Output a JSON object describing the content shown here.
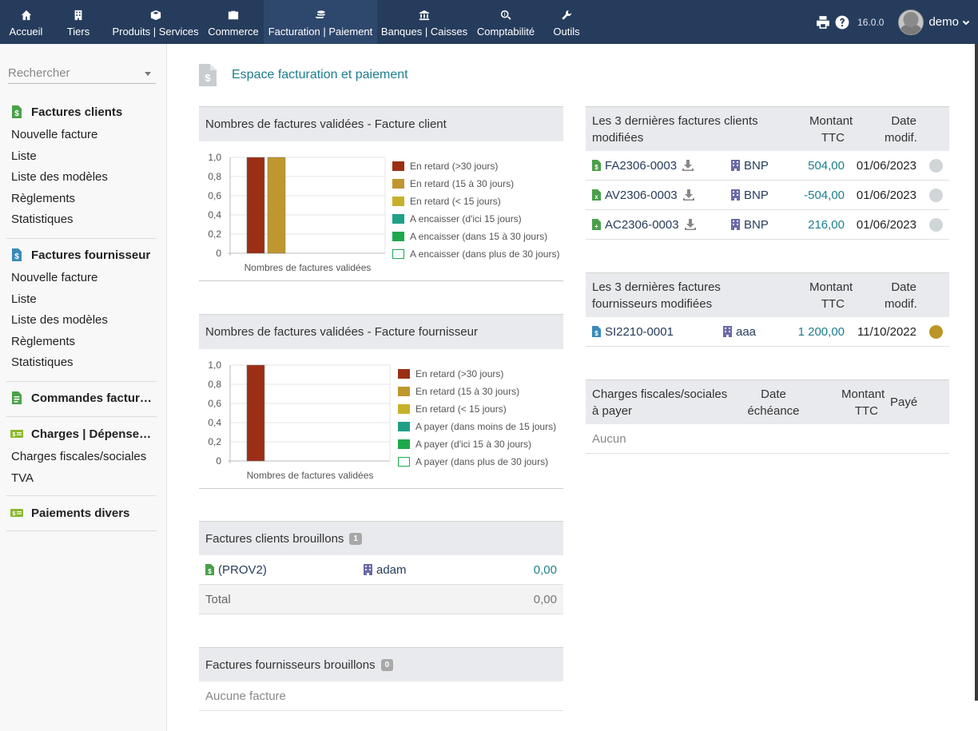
{
  "topmenu": [
    {
      "label": "Accueil",
      "icon": "home-icon"
    },
    {
      "label": "Tiers",
      "icon": "building-icon"
    },
    {
      "label": "Produits | Services",
      "icon": "cube-icon"
    },
    {
      "label": "Commerce",
      "icon": "briefcase-icon"
    },
    {
      "label": "Facturation | Paiement",
      "icon": "coins-icon"
    },
    {
      "label": "Banques | Caisses",
      "icon": "bank-icon"
    },
    {
      "label": "Comptabilité",
      "icon": "search-dollar-icon"
    },
    {
      "label": "Outils",
      "icon": "wrench-icon"
    }
  ],
  "topright": {
    "version": "16.0.0",
    "user": "demo"
  },
  "sidebar": {
    "search_placeholder": "Rechercher",
    "sections": [
      {
        "title": "Factures clients",
        "items": [
          "Nouvelle facture",
          "Liste",
          "Liste des modèles",
          "Règlements",
          "Statistiques"
        ]
      },
      {
        "title": "Factures fournisseur",
        "items": [
          "Nouvelle facture",
          "Liste",
          "Liste des modèles",
          "Règlements",
          "Statistiques"
        ]
      },
      {
        "title": "Commandes facturables",
        "items": []
      },
      {
        "title": "Charges | Dépenses spéciales",
        "items": [
          "Charges fiscales/sociales",
          "TVA"
        ]
      },
      {
        "title": "Paiements divers",
        "items": []
      }
    ]
  },
  "page": {
    "title": "Espace facturation et paiement"
  },
  "customer_chart": {
    "heading": "Nombres de factures validées - Facture client",
    "legend": [
      "En retard (>30 jours)",
      "En retard (15 à 30 jours)",
      "En retard (< 15 jours)",
      "A encaisser (d'ici 15 jours)",
      "A encaisser (dans 15 à 30 jours)",
      "A encaisser (dans plus de 30 jours)"
    ]
  },
  "supplier_chart": {
    "heading": "Nombres de factures validées - Facture fournisseur",
    "legend": [
      "En retard (>30 jours)",
      "En retard (15 à 30 jours)",
      "En retard (< 15 jours)",
      "A payer (dans moins de 15 jours)",
      "A payer (d'ici 15 à 30 jours)",
      "A payer (dans plus de 30 jours)"
    ]
  },
  "chart_data": [
    {
      "type": "bar",
      "xlabel": "Nombres de factures validées",
      "yticks": [
        "1,0",
        "0,8",
        "0,6",
        "0,4",
        "0,2",
        "0"
      ],
      "ylim": [
        0,
        1
      ],
      "grid": true,
      "legend_position": "right",
      "series": [
        {
          "name": "En retard (>30 jours)",
          "value": 1,
          "color": "#9b2f15"
        },
        {
          "name": "En retard (15 à 30 jours)",
          "value": 1,
          "color": "#c0962f"
        },
        {
          "name": "En retard (< 15 jours)",
          "value": 0,
          "color": "#c8b02c"
        },
        {
          "name": "A encaisser (d'ici 15 jours)",
          "value": 0,
          "color": "#1fa086"
        },
        {
          "name": "A encaisser (dans 15 à 30 jours)",
          "value": 0,
          "color": "#1ea84c"
        },
        {
          "name": "A encaisser (dans plus de 30 jours)",
          "value": 0,
          "color": "#ffffff"
        }
      ]
    },
    {
      "type": "bar",
      "xlabel": "Nombres de factures validées",
      "yticks": [
        "1,0",
        "0,8",
        "0,6",
        "0,4",
        "0,2",
        "0"
      ],
      "ylim": [
        0,
        1
      ],
      "grid": true,
      "legend_position": "right",
      "series": [
        {
          "name": "En retard (>30 jours)",
          "value": 1,
          "color": "#9b2f15"
        },
        {
          "name": "En retard (15 à 30 jours)",
          "value": 0,
          "color": "#c0962f"
        },
        {
          "name": "En retard (< 15 jours)",
          "value": 0,
          "color": "#c8b02c"
        },
        {
          "name": "A payer (dans moins de 15 jours)",
          "value": 0,
          "color": "#1fa086"
        },
        {
          "name": "A payer (d'ici 15 à 30 jours)",
          "value": 0,
          "color": "#1ea84c"
        },
        {
          "name": "A payer (dans plus de 30 jours)",
          "value": 0,
          "color": "#ffffff"
        }
      ]
    }
  ],
  "draft_customer": {
    "heading": "Factures clients brouillons",
    "count": "1",
    "rows": [
      {
        "ref": "(PROV2)",
        "thirdparty": "adam",
        "amount": "0,00"
      }
    ],
    "total_label": "Total",
    "total": "0,00"
  },
  "draft_supplier": {
    "heading": "Factures fournisseurs brouillons",
    "count": "0",
    "empty": "Aucune facture"
  },
  "last_customer": {
    "heading": "Les 3 dernières factures clients modifiées",
    "col_amount": "Montant TTC",
    "col_date": "Date modif.",
    "rows": [
      {
        "ref": "FA2306-0003",
        "thirdparty": "BNP",
        "amount": "504,00",
        "date": "01/06/2023",
        "status_color": "#d0d5d8"
      },
      {
        "ref": "AV2306-0003",
        "thirdparty": "BNP",
        "amount": "-504,00",
        "date": "01/06/2023",
        "status_color": "#d0d5d8"
      },
      {
        "ref": "AC2306-0003",
        "thirdparty": "BNP",
        "amount": "216,00",
        "date": "01/06/2023",
        "status_color": "#d0d5d8"
      }
    ]
  },
  "last_supplier": {
    "heading": "Les 3 dernières factures fournisseurs modifiées",
    "col_amount": "Montant TTC",
    "col_date": "Date modif.",
    "rows": [
      {
        "ref": "SI2210-0001",
        "thirdparty": "aaa",
        "amount": "1 200,00",
        "date": "11/10/2022",
        "status_color": "#bc9526"
      }
    ]
  },
  "social_charges": {
    "heading": "Charges fiscales/sociales à payer",
    "col_due": "Date échéance",
    "col_amount": "Montant TTC",
    "col_paid": "Payé",
    "empty": "Aucun"
  },
  "colors": {
    "topbar": "#263c5c",
    "accent": "#1b7e8c",
    "link": "#263c5c",
    "icon_green": "#4aa04a"
  }
}
